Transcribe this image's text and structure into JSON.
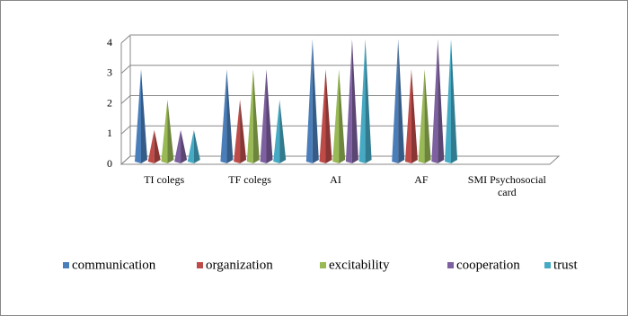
{
  "chart_data": {
    "type": "pyramid",
    "categories": [
      "TI colegs",
      "TF colegs",
      "AI",
      "AF",
      "SMI Psychosocial card"
    ],
    "series": [
      {
        "name": "communication",
        "color": "#4a7ebb",
        "values": [
          3,
          3,
          4,
          4,
          null
        ]
      },
      {
        "name": "organization",
        "color": "#be4b48",
        "values": [
          1,
          2,
          3,
          3,
          null
        ]
      },
      {
        "name": "excitability",
        "color": "#98b954",
        "values": [
          2,
          3,
          3,
          3,
          null
        ]
      },
      {
        "name": "cooperation",
        "color": "#7d60a0",
        "values": [
          1,
          3,
          4,
          4,
          null
        ]
      },
      {
        "name": "trust",
        "color": "#46aac5",
        "values": [
          1,
          2,
          4,
          4,
          null
        ]
      }
    ],
    "ylim": [
      0,
      4
    ],
    "yticks": [
      0,
      1,
      2,
      3,
      4
    ],
    "grid": true,
    "legend": "bottom"
  }
}
